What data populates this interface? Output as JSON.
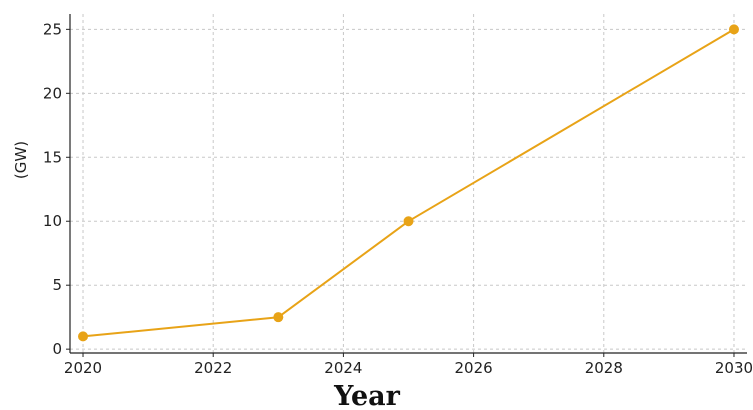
{
  "chart_data": {
    "type": "line",
    "xlabel": "Year",
    "ylabel": "(GW)",
    "xlim": [
      2019.8,
      2030.2
    ],
    "ylim": [
      -0.3,
      26.2
    ],
    "xticks": [
      2020,
      2022,
      2024,
      2026,
      2028,
      2030
    ],
    "yticks": [
      0,
      5,
      10,
      15,
      20,
      25
    ],
    "grid": true,
    "series": [
      {
        "x": [
          2020,
          2023,
          2025,
          2030
        ],
        "y": [
          1,
          2.5,
          10,
          25
        ],
        "color": "#e8a317",
        "marker": "circle"
      }
    ]
  },
  "colors": {
    "line": "#e8a317",
    "grid": "#c8c8c8",
    "axis": "#222222"
  }
}
